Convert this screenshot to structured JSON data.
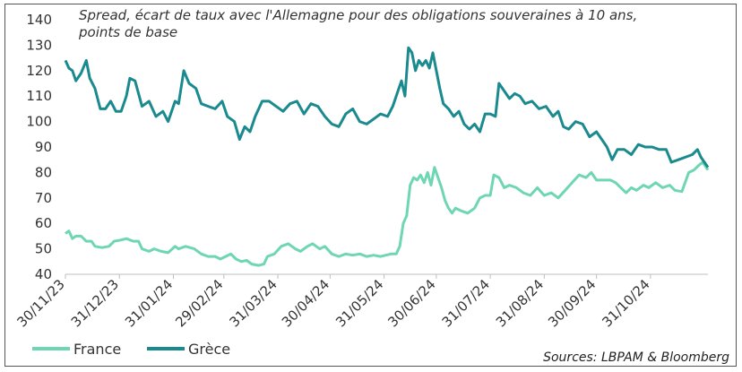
{
  "chart_data": {
    "type": "line",
    "title": "Spread, écart de taux avec l'Allemagne pour des obligations souveraines à 10 ans, points de base",
    "source": "Sources: LBPAM & Bloomberg",
    "ylim": [
      40,
      140
    ],
    "yticks": [
      "40",
      "50",
      "60",
      "70",
      "80",
      "90",
      "100",
      "110",
      "120",
      "130",
      "140"
    ],
    "xlim": [
      "2023-11-30",
      "2024-12-03"
    ],
    "xticks": [
      {
        "date": "2023-11-30",
        "label": "30/11/23"
      },
      {
        "date": "2023-12-31",
        "label": "31/12/23"
      },
      {
        "date": "2024-01-31",
        "label": "31/01/24"
      },
      {
        "date": "2024-02-29",
        "label": "29/02/24"
      },
      {
        "date": "2024-03-31",
        "label": "31/03/24"
      },
      {
        "date": "2024-04-30",
        "label": "30/04/24"
      },
      {
        "date": "2024-05-31",
        "label": "31/05/24"
      },
      {
        "date": "2024-06-30",
        "label": "30/06/24"
      },
      {
        "date": "2024-07-31",
        "label": "31/07/24"
      },
      {
        "date": "2024-08-31",
        "label": "31/08/24"
      },
      {
        "date": "2024-09-30",
        "label": "30/09/24"
      },
      {
        "date": "2024-10-31",
        "label": "31/10/24"
      }
    ],
    "legend_position": "bottom-left",
    "series": [
      {
        "name": "France",
        "color": "#6fd6b3",
        "points": [
          [
            "2023-11-30",
            56
          ],
          [
            "2023-12-02",
            57
          ],
          [
            "2023-12-04",
            54
          ],
          [
            "2023-12-06",
            55
          ],
          [
            "2023-12-09",
            55
          ],
          [
            "2023-12-12",
            53
          ],
          [
            "2023-12-15",
            53
          ],
          [
            "2023-12-17",
            51
          ],
          [
            "2023-12-21",
            50.5
          ],
          [
            "2023-12-25",
            51
          ],
          [
            "2023-12-28",
            53
          ],
          [
            "2024-01-01",
            53.5
          ],
          [
            "2024-01-04",
            54
          ],
          [
            "2024-01-08",
            53
          ],
          [
            "2024-01-11",
            53
          ],
          [
            "2024-01-13",
            50
          ],
          [
            "2024-01-17",
            49
          ],
          [
            "2024-01-20",
            50
          ],
          [
            "2024-01-24",
            49
          ],
          [
            "2024-01-28",
            48.5
          ],
          [
            "2024-02-01",
            51
          ],
          [
            "2024-02-03",
            50
          ],
          [
            "2024-02-07",
            51
          ],
          [
            "2024-02-12",
            50
          ],
          [
            "2024-02-16",
            48
          ],
          [
            "2024-02-20",
            47
          ],
          [
            "2024-02-24",
            47
          ],
          [
            "2024-02-27",
            46
          ],
          [
            "2024-03-01",
            47
          ],
          [
            "2024-03-04",
            48
          ],
          [
            "2024-03-07",
            46
          ],
          [
            "2024-03-10",
            45
          ],
          [
            "2024-03-13",
            45.5
          ],
          [
            "2024-03-16",
            44
          ],
          [
            "2024-03-20",
            43.5
          ],
          [
            "2024-03-23",
            44
          ],
          [
            "2024-03-25",
            47
          ],
          [
            "2024-03-29",
            48
          ],
          [
            "2024-04-02",
            51
          ],
          [
            "2024-04-06",
            52
          ],
          [
            "2024-04-10",
            50
          ],
          [
            "2024-04-13",
            49
          ],
          [
            "2024-04-17",
            51
          ],
          [
            "2024-04-20",
            52
          ],
          [
            "2024-04-24",
            50
          ],
          [
            "2024-04-27",
            51
          ],
          [
            "2024-05-01",
            48
          ],
          [
            "2024-05-05",
            47
          ],
          [
            "2024-05-09",
            48
          ],
          [
            "2024-05-13",
            47.5
          ],
          [
            "2024-05-17",
            48
          ],
          [
            "2024-05-21",
            47
          ],
          [
            "2024-05-25",
            47.5
          ],
          [
            "2024-05-29",
            47
          ],
          [
            "2024-06-01",
            47.5
          ],
          [
            "2024-06-04",
            48
          ],
          [
            "2024-06-07",
            48
          ],
          [
            "2024-06-09",
            51
          ],
          [
            "2024-06-11",
            60
          ],
          [
            "2024-06-13",
            63
          ],
          [
            "2024-06-15",
            75
          ],
          [
            "2024-06-17",
            78
          ],
          [
            "2024-06-19",
            77
          ],
          [
            "2024-06-21",
            79
          ],
          [
            "2024-06-23",
            76
          ],
          [
            "2024-06-25",
            80
          ],
          [
            "2024-06-27",
            75
          ],
          [
            "2024-06-29",
            82
          ],
          [
            "2024-07-01",
            78
          ],
          [
            "2024-07-03",
            74
          ],
          [
            "2024-07-05",
            69
          ],
          [
            "2024-07-07",
            66
          ],
          [
            "2024-07-09",
            64
          ],
          [
            "2024-07-11",
            66
          ],
          [
            "2024-07-14",
            65
          ],
          [
            "2024-07-18",
            64
          ],
          [
            "2024-07-22",
            66
          ],
          [
            "2024-07-25",
            70
          ],
          [
            "2024-07-28",
            71
          ],
          [
            "2024-07-31",
            71
          ],
          [
            "2024-08-02",
            79
          ],
          [
            "2024-08-05",
            78
          ],
          [
            "2024-08-08",
            74
          ],
          [
            "2024-08-11",
            75
          ],
          [
            "2024-08-15",
            74
          ],
          [
            "2024-08-19",
            72
          ],
          [
            "2024-08-23",
            71
          ],
          [
            "2024-08-27",
            74
          ],
          [
            "2024-08-31",
            71
          ],
          [
            "2024-09-04",
            72
          ],
          [
            "2024-09-08",
            70
          ],
          [
            "2024-09-12",
            73
          ],
          [
            "2024-09-16",
            76
          ],
          [
            "2024-09-20",
            79
          ],
          [
            "2024-09-24",
            78
          ],
          [
            "2024-09-27",
            80
          ],
          [
            "2024-09-30",
            77
          ],
          [
            "2024-10-04",
            77
          ],
          [
            "2024-10-08",
            77
          ],
          [
            "2024-10-11",
            76
          ],
          [
            "2024-10-14",
            74
          ],
          [
            "2024-10-17",
            72
          ],
          [
            "2024-10-20",
            74
          ],
          [
            "2024-10-23",
            73
          ],
          [
            "2024-10-27",
            75
          ],
          [
            "2024-10-30",
            74
          ],
          [
            "2024-11-03",
            76
          ],
          [
            "2024-11-07",
            74
          ],
          [
            "2024-11-11",
            75
          ],
          [
            "2024-11-14",
            73
          ],
          [
            "2024-11-18",
            72.5
          ],
          [
            "2024-11-22",
            80
          ],
          [
            "2024-11-25",
            81
          ],
          [
            "2024-11-28",
            83
          ],
          [
            "2024-11-30",
            84
          ],
          [
            "2024-12-03",
            81
          ]
        ]
      },
      {
        "name": "Grèce",
        "color": "#1a8a8e",
        "points": [
          [
            "2023-11-30",
            124
          ],
          [
            "2023-12-02",
            121
          ],
          [
            "2023-12-04",
            120
          ],
          [
            "2023-12-06",
            116
          ],
          [
            "2023-12-09",
            119
          ],
          [
            "2023-12-12",
            124
          ],
          [
            "2023-12-14",
            117
          ],
          [
            "2023-12-17",
            113
          ],
          [
            "2023-12-20",
            105
          ],
          [
            "2023-12-23",
            105
          ],
          [
            "2023-12-26",
            108
          ],
          [
            "2023-12-29",
            104
          ],
          [
            "2024-01-01",
            104
          ],
          [
            "2024-01-04",
            110
          ],
          [
            "2024-01-06",
            117
          ],
          [
            "2024-01-09",
            116
          ],
          [
            "2024-01-13",
            106
          ],
          [
            "2024-01-17",
            108
          ],
          [
            "2024-01-21",
            102
          ],
          [
            "2024-01-25",
            104
          ],
          [
            "2024-01-28",
            100
          ],
          [
            "2024-02-01",
            108
          ],
          [
            "2024-02-03",
            107
          ],
          [
            "2024-02-06",
            120
          ],
          [
            "2024-02-09",
            115
          ],
          [
            "2024-02-13",
            113
          ],
          [
            "2024-02-16",
            107
          ],
          [
            "2024-02-20",
            106
          ],
          [
            "2024-02-24",
            105
          ],
          [
            "2024-02-28",
            108
          ],
          [
            "2024-03-02",
            102
          ],
          [
            "2024-03-06",
            100
          ],
          [
            "2024-03-09",
            93
          ],
          [
            "2024-03-12",
            98
          ],
          [
            "2024-03-15",
            96
          ],
          [
            "2024-03-18",
            102
          ],
          [
            "2024-03-22",
            108
          ],
          [
            "2024-03-26",
            108
          ],
          [
            "2024-03-30",
            106
          ],
          [
            "2024-04-03",
            104
          ],
          [
            "2024-04-07",
            107
          ],
          [
            "2024-04-11",
            108
          ],
          [
            "2024-04-15",
            103
          ],
          [
            "2024-04-19",
            107
          ],
          [
            "2024-04-23",
            106
          ],
          [
            "2024-04-27",
            102
          ],
          [
            "2024-05-01",
            99
          ],
          [
            "2024-05-05",
            98
          ],
          [
            "2024-05-09",
            103
          ],
          [
            "2024-05-13",
            105
          ],
          [
            "2024-05-17",
            100
          ],
          [
            "2024-05-21",
            99
          ],
          [
            "2024-05-25",
            101
          ],
          [
            "2024-05-29",
            103
          ],
          [
            "2024-06-02",
            102
          ],
          [
            "2024-06-05",
            106
          ],
          [
            "2024-06-08",
            112
          ],
          [
            "2024-06-10",
            116
          ],
          [
            "2024-06-12",
            110
          ],
          [
            "2024-06-14",
            129
          ],
          [
            "2024-06-16",
            127
          ],
          [
            "2024-06-18",
            120
          ],
          [
            "2024-06-20",
            124
          ],
          [
            "2024-06-22",
            122
          ],
          [
            "2024-06-24",
            124
          ],
          [
            "2024-06-26",
            121
          ],
          [
            "2024-06-28",
            127
          ],
          [
            "2024-06-30",
            120
          ],
          [
            "2024-07-02",
            113
          ],
          [
            "2024-07-04",
            107
          ],
          [
            "2024-07-07",
            105
          ],
          [
            "2024-07-10",
            102
          ],
          [
            "2024-07-13",
            104
          ],
          [
            "2024-07-16",
            99
          ],
          [
            "2024-07-19",
            97
          ],
          [
            "2024-07-22",
            99
          ],
          [
            "2024-07-25",
            96
          ],
          [
            "2024-07-28",
            103
          ],
          [
            "2024-07-31",
            103
          ],
          [
            "2024-08-03",
            102
          ],
          [
            "2024-08-05",
            115
          ],
          [
            "2024-08-08",
            112
          ],
          [
            "2024-08-11",
            109
          ],
          [
            "2024-08-14",
            111
          ],
          [
            "2024-08-17",
            110
          ],
          [
            "2024-08-20",
            107
          ],
          [
            "2024-08-24",
            108
          ],
          [
            "2024-08-28",
            105
          ],
          [
            "2024-09-01",
            106
          ],
          [
            "2024-09-05",
            102
          ],
          [
            "2024-09-08",
            104
          ],
          [
            "2024-09-11",
            98
          ],
          [
            "2024-09-14",
            97
          ],
          [
            "2024-09-18",
            100
          ],
          [
            "2024-09-22",
            99
          ],
          [
            "2024-09-26",
            94
          ],
          [
            "2024-09-30",
            96
          ],
          [
            "2024-10-03",
            93
          ],
          [
            "2024-10-06",
            90
          ],
          [
            "2024-10-09",
            85
          ],
          [
            "2024-10-12",
            89
          ],
          [
            "2024-10-16",
            89
          ],
          [
            "2024-10-20",
            87
          ],
          [
            "2024-10-24",
            91
          ],
          [
            "2024-10-28",
            90
          ],
          [
            "2024-11-01",
            90
          ],
          [
            "2024-11-05",
            89
          ],
          [
            "2024-11-09",
            89
          ],
          [
            "2024-11-12",
            84
          ],
          [
            "2024-11-16",
            85
          ],
          [
            "2024-11-20",
            86
          ],
          [
            "2024-11-24",
            87
          ],
          [
            "2024-11-27",
            89
          ],
          [
            "2024-11-29",
            86
          ],
          [
            "2024-12-03",
            82
          ]
        ]
      }
    ]
  }
}
